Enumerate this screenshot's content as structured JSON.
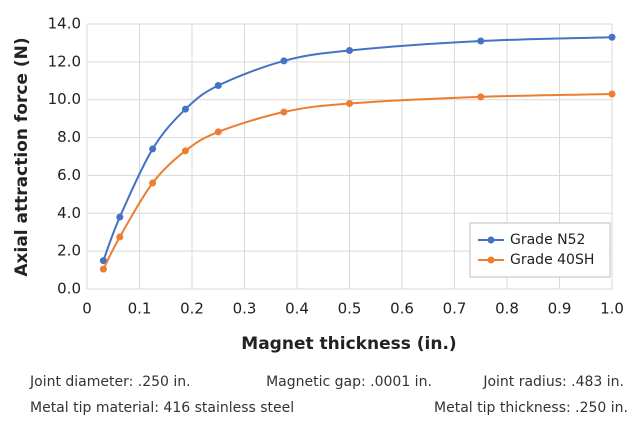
{
  "chart_data": {
    "type": "line",
    "x_label": "Magnet thickness (in.)",
    "y_label": "Axial attraction force (N)",
    "x": [
      0.03125,
      0.0625,
      0.125,
      0.1875,
      0.25,
      0.375,
      0.5,
      0.75,
      1.0
    ],
    "series": [
      {
        "name": "Grade N52",
        "color": "#4472c4",
        "values": [
          1.5,
          3.8,
          7.4,
          9.5,
          10.75,
          12.05,
          12.6,
          13.1,
          13.3
        ]
      },
      {
        "name": "Grade 40SH",
        "color": "#ed7d31",
        "values": [
          1.05,
          2.75,
          5.6,
          7.3,
          8.3,
          9.35,
          9.8,
          10.15,
          10.3
        ]
      }
    ],
    "xlim": [
      0,
      1.0
    ],
    "xticks": [
      0,
      0.1,
      0.2,
      0.3,
      0.4,
      0.5,
      0.6,
      0.7,
      0.8,
      0.9,
      {
        "value": 1.0,
        "label": "1.0"
      }
    ],
    "ylim": [
      0,
      14
    ],
    "yticks": [
      {
        "value": 0,
        "label": "0.0"
      },
      {
        "value": 2,
        "label": "2.0"
      },
      {
        "value": 4,
        "label": "4.0"
      },
      {
        "value": 6,
        "label": "6.0"
      },
      {
        "value": 8,
        "label": "8.0"
      },
      {
        "value": 10,
        "label": "10.0"
      },
      {
        "value": 12,
        "label": "12.0"
      },
      {
        "value": 14,
        "label": "14.0"
      }
    ],
    "grid": true,
    "legend": "lower-right",
    "annotations": [
      "Joint diameter: .250 in.",
      "Magnetic gap: .0001 in.",
      "Joint radius: .483 in.",
      "Metal tip material: 416 stainless steel",
      "Metal tip thickness: .250 in."
    ]
  }
}
